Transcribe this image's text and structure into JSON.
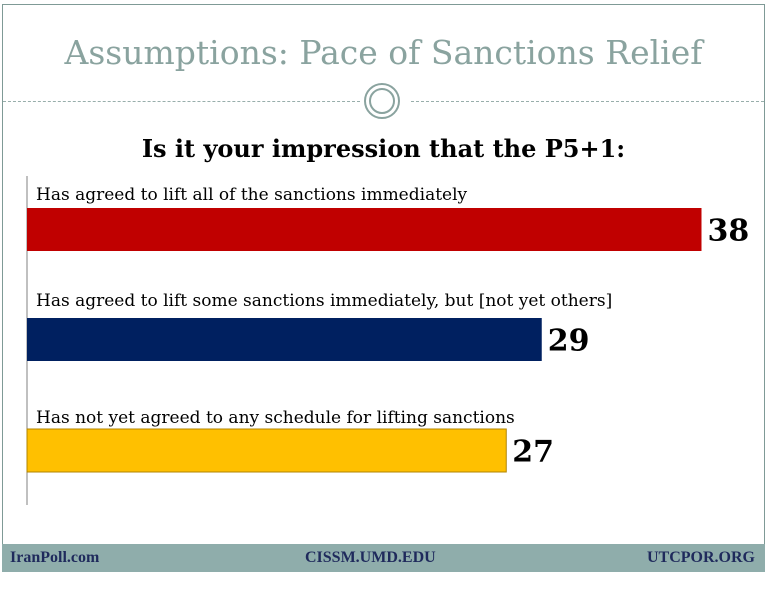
{
  "title": "Assumptions: Pace of Sanctions Relief",
  "question": "Is it your impression that the P5+1:",
  "chart_data": {
    "type": "bar",
    "orientation": "horizontal",
    "categories": [
      "Has agreed to lift all of the sanctions immediately",
      "Has agreed to lift some sanctions immediately, but [not yet others]",
      "Has not yet agreed to any schedule for lifting sanctions"
    ],
    "values": [
      38,
      29,
      27
    ],
    "colors": [
      "#c00000",
      "#002060",
      "#ffc000"
    ],
    "xlim": [
      0,
      41
    ],
    "grid": false,
    "legend": "none"
  },
  "footer": {
    "left": "IranPoll.com",
    "center": "CISSM.UMD.EDU",
    "right": "UTCPOR.ORG"
  }
}
